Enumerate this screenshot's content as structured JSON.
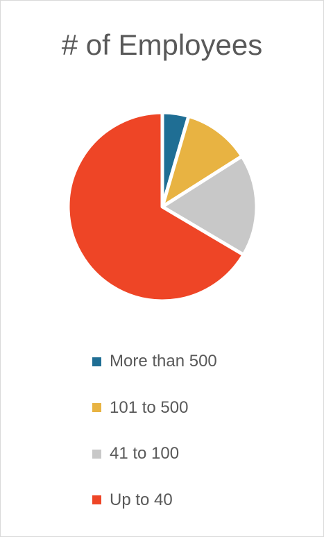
{
  "chart_data": {
    "type": "pie",
    "title": "# of Employees",
    "labels": [
      "More than 500",
      "101 to 500",
      "41 to 100",
      "Up to 40"
    ],
    "values": [
      4.5,
      11.5,
      17.5,
      66.5
    ],
    "colors": [
      "#1f6e94",
      "#e8b342",
      "#c8c8c8",
      "#ee4526"
    ],
    "legend_position": "bottom"
  }
}
